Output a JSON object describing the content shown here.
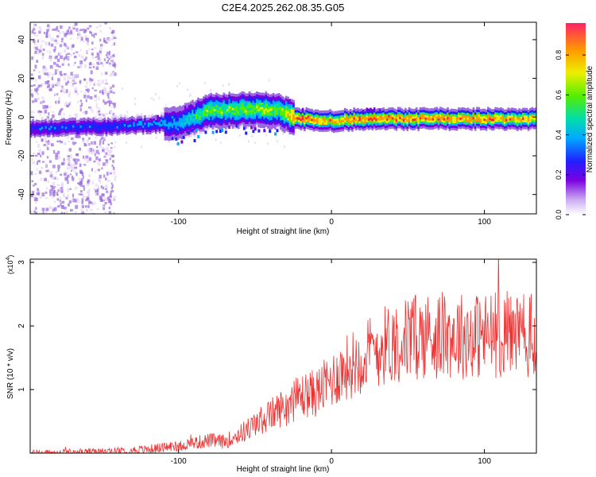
{
  "title": "C2E4.2025.262.08.35.G05",
  "chart_data": [
    {
      "type": "heatmap",
      "title": "C2E4.2025.262.08.35.G05",
      "xlabel": "Height of straight line (km)",
      "ylabel": "Frequency (Hz)",
      "xlim": [
        -197,
        134
      ],
      "ylim": [
        -50,
        49
      ],
      "xticks": [
        -100,
        0,
        100
      ],
      "yticks": [
        -40,
        -20,
        0,
        20,
        40
      ],
      "colorbar": {
        "label": "Normalized spectral amplitude",
        "range": [
          0,
          0.96
        ],
        "ticks": [
          0.0,
          0.2,
          0.4,
          0.6,
          0.8
        ],
        "tick_labels": [
          "0.0",
          "0.2",
          "0.4",
          "0.6",
          "0.8"
        ]
      },
      "ridge": {
        "x": [
          -197,
          -150,
          -120,
          -100,
          -80,
          -60,
          -45,
          -35,
          -25,
          -20,
          0,
          20,
          60,
          100,
          134
        ],
        "frequency_hz": [
          -5,
          -4,
          -3,
          -2,
          4,
          5,
          5,
          4,
          1,
          0,
          -1,
          0,
          0,
          0,
          0
        ],
        "peak_amplitude": [
          0.3,
          0.3,
          0.35,
          0.4,
          0.6,
          0.6,
          0.65,
          0.6,
          0.85,
          0.9,
          0.8,
          0.9,
          0.85,
          0.85,
          0.8
        ]
      }
    },
    {
      "type": "line",
      "xlabel": "Height of straight line (km)",
      "ylabel": "SNR (10 * v/v)",
      "y_multiplier_label": "(x10",
      "y_multiplier_exp": "4",
      "y_multiplier_close": ")",
      "xlim": [
        -197,
        134
      ],
      "ylim": [
        0,
        3.05
      ],
      "xticks": [
        -100,
        0,
        100
      ],
      "yticks": [
        1,
        2,
        3
      ],
      "series": [
        {
          "name": "SNR",
          "color": "#ee3333",
          "trend_x": [
            -197,
            -150,
            -120,
            -100,
            -80,
            -70,
            -60,
            -50,
            -40,
            -30,
            -20,
            -10,
            0,
            10,
            20,
            30,
            40,
            50,
            60,
            80,
            100,
            120,
            134
          ],
          "trend_y": [
            0.0,
            0.02,
            0.06,
            0.12,
            0.2,
            0.18,
            0.3,
            0.45,
            0.6,
            0.75,
            0.9,
            0.95,
            1.15,
            1.35,
            1.5,
            1.65,
            1.75,
            1.8,
            1.85,
            1.85,
            1.85,
            1.9,
            1.8
          ]
        }
      ]
    }
  ],
  "colors": {
    "line": "#ee3333",
    "colormap": [
      "#ffffff",
      "#e6d6f5",
      "#9a6be0",
      "#7a00e0",
      "#2020ff",
      "#00aaff",
      "#00ddaa",
      "#55ee00",
      "#eeee00",
      "#ff9900",
      "#ff2244"
    ]
  }
}
